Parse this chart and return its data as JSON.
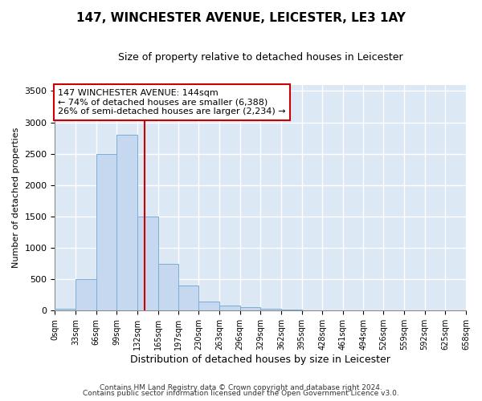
{
  "title": "147, WINCHESTER AVENUE, LEICESTER, LE3 1AY",
  "subtitle": "Size of property relative to detached houses in Leicester",
  "xlabel": "Distribution of detached houses by size in Leicester",
  "ylabel": "Number of detached properties",
  "bin_edges": [
    0,
    33,
    66,
    99,
    132,
    165,
    197,
    230,
    263,
    296,
    329,
    362,
    395,
    428,
    461,
    494,
    526,
    559,
    592,
    625,
    658
  ],
  "bin_heights": [
    25,
    500,
    2500,
    2800,
    1500,
    750,
    400,
    150,
    75,
    50,
    25,
    20,
    0,
    0,
    0,
    0,
    0,
    0,
    0,
    0
  ],
  "bar_color": "#c5d8f0",
  "bar_edge_color": "#7aadd4",
  "bg_color": "#dde8f5",
  "grid_color": "#ffffff",
  "property_size": 144,
  "red_line_color": "#cc0000",
  "annotation_text": "147 WINCHESTER AVENUE: 144sqm\n← 74% of detached houses are smaller (6,388)\n26% of semi-detached houses are larger (2,234) →",
  "annotation_box_color": "#ffffff",
  "annotation_box_edge": "#cc0000",
  "footer_line1": "Contains HM Land Registry data © Crown copyright and database right 2024.",
  "footer_line2": "Contains public sector information licensed under the Open Government Licence v3.0.",
  "ylim": [
    0,
    3600
  ],
  "yticks": [
    0,
    500,
    1000,
    1500,
    2000,
    2500,
    3000,
    3500
  ],
  "xtick_labels": [
    "0sqm",
    "33sqm",
    "66sqm",
    "99sqm",
    "132sqm",
    "165sqm",
    "197sqm",
    "230sqm",
    "263sqm",
    "296sqm",
    "329sqm",
    "362sqm",
    "395sqm",
    "428sqm",
    "461sqm",
    "494sqm",
    "526sqm",
    "559sqm",
    "592sqm",
    "625sqm",
    "658sqm"
  ],
  "fig_bg_color": "#ffffff",
  "title_fontsize": 11,
  "subtitle_fontsize": 9
}
